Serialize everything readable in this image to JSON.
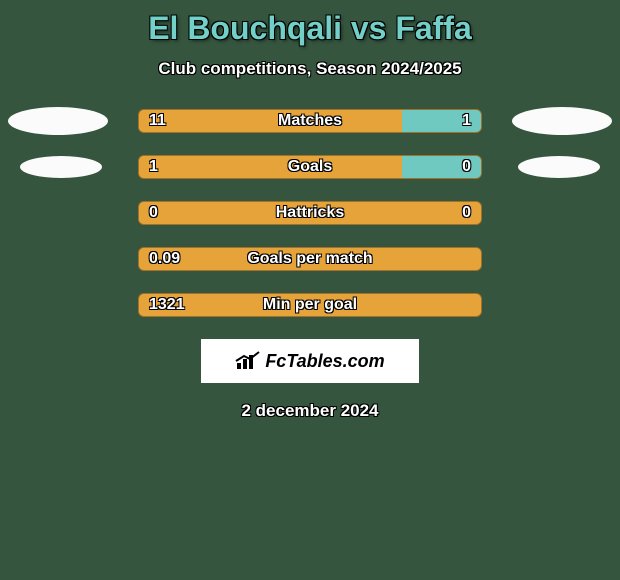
{
  "background_color": "#35553f",
  "title": {
    "text": "El Bouchqali vs Faffa",
    "color": "#72d0c8",
    "fontsize": 32
  },
  "subtitle": {
    "text": "Club competitions, Season 2024/2025",
    "fontsize": 17
  },
  "accent_colors": {
    "left_bar": "#e6a33a",
    "right_bar": "#6fc9c0",
    "oval": "#fbfbfb"
  },
  "ovals": {
    "row0_left": true,
    "row0_right": true,
    "row1_left": true,
    "row1_right": true
  },
  "stats": [
    {
      "label": "Matches",
      "left_value": "11",
      "right_value": "1",
      "left_pct": 77,
      "right_pct": 23
    },
    {
      "label": "Goals",
      "left_value": "1",
      "right_value": "0",
      "left_pct": 77,
      "right_pct": 23
    },
    {
      "label": "Hattricks",
      "left_value": "0",
      "right_value": "0",
      "left_pct": 100,
      "right_pct": 0
    },
    {
      "label": "Goals per match",
      "left_value": "0.09",
      "right_value": "",
      "left_pct": 100,
      "right_pct": 0
    },
    {
      "label": "Min per goal",
      "left_value": "1321",
      "right_value": "",
      "left_pct": 100,
      "right_pct": 0
    }
  ],
  "logo": {
    "text": "FcTables.com",
    "icon_name": "bar-chart-icon"
  },
  "date": "2 december 2024"
}
